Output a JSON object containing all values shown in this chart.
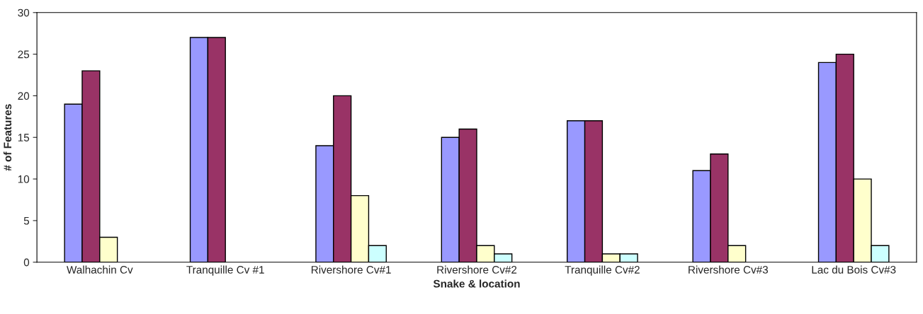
{
  "chart_data": {
    "type": "bar",
    "xlabel": "Snake & location",
    "ylabel": "# of Features",
    "categories": [
      "Walhachin Cv",
      "Tranquille Cv #1",
      "Rivershore Cv#1",
      "Rivershore Cv#2",
      "Tranquille Cv#2",
      "Rivershore Cv#3",
      "Lac du Bois Cv#3"
    ],
    "series": [
      {
        "color": "#9999ff",
        "values": [
          19,
          27,
          14,
          15,
          17,
          11,
          24
        ]
      },
      {
        "color": "#993366",
        "values": [
          23,
          27,
          20,
          16,
          17,
          13,
          25
        ]
      },
      {
        "color": "#ffffcc",
        "values": [
          3,
          null,
          8,
          2,
          1,
          2,
          10
        ]
      },
      {
        "color": "#ccffff",
        "values": [
          null,
          null,
          2,
          1,
          1,
          null,
          2
        ]
      }
    ],
    "ylim": [
      0,
      30
    ],
    "yticks": [
      0,
      5,
      10,
      15,
      20,
      25,
      30
    ],
    "grid": false,
    "legend": false
  }
}
